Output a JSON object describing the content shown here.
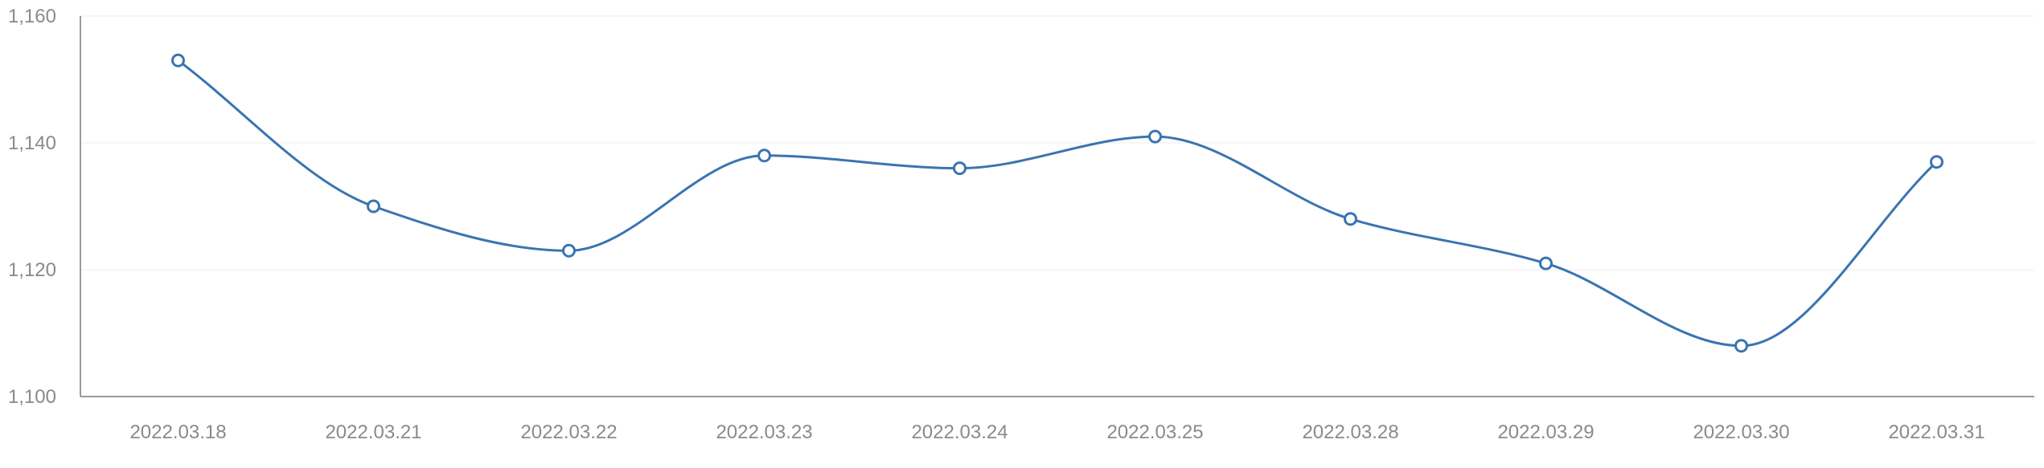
{
  "chart_data": {
    "type": "line",
    "title": "",
    "xlabel": "",
    "ylabel": "",
    "categories": [
      "2022.03.18",
      "2022.03.21",
      "2022.03.22",
      "2022.03.23",
      "2022.03.24",
      "2022.03.25",
      "2022.03.28",
      "2022.03.29",
      "2022.03.30",
      "2022.03.31"
    ],
    "series": [
      {
        "values": [
          1153,
          1130,
          1123,
          1138,
          1136,
          1141,
          1128,
          1121,
          1108,
          1137
        ]
      }
    ],
    "ylim": [
      1100,
      1160
    ],
    "yticks": [
      1100,
      1120,
      1140,
      1160
    ],
    "ytick_labels": [
      "1,100",
      "1,120",
      "1,140",
      "1,160"
    ],
    "grid": true,
    "legend": "none",
    "colors": {
      "line": "#3a74b0",
      "marker_fill": "#ffffff",
      "grid": "#eeeeee",
      "axis": "#9a9a9a",
      "tick_text": "#8a8a8a"
    }
  }
}
